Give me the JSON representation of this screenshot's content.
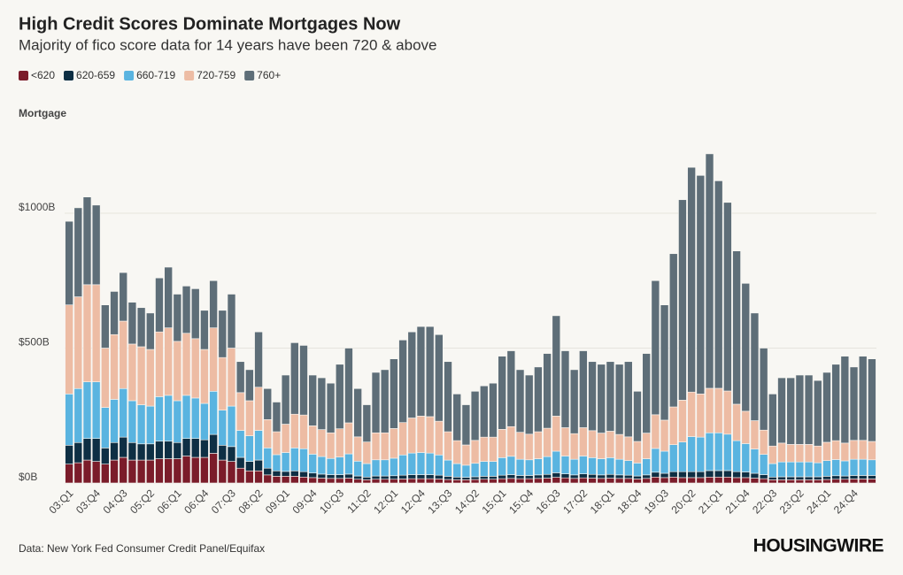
{
  "chart_data": {
    "type": "stacked_bar",
    "title": "High Credit Scores Dominate Mortgages Now",
    "subtitle": "Majority of fico score data for 14 years have been 720 & above",
    "y_label": "Mortgage",
    "source": "Data: New York Fed Consumer Credit Panel/Equifax",
    "logo": "HOUSINGWIRE",
    "ylim": [
      0,
      1300
    ],
    "yticks": [
      {
        "value": 0,
        "label": "$0B"
      },
      {
        "value": 500,
        "label": "$500B"
      },
      {
        "value": 1000,
        "label": "$1000B"
      }
    ],
    "grid": true,
    "legend": "top-left",
    "categories": [
      "03:Q1",
      null,
      null,
      "03:Q4",
      null,
      null,
      "04:Q3",
      null,
      null,
      "05:Q2",
      null,
      null,
      "06:Q1",
      null,
      null,
      "06:Q4",
      null,
      null,
      "07:Q3",
      null,
      null,
      "08:Q2",
      null,
      null,
      "09:Q1",
      null,
      null,
      "09:Q4",
      null,
      null,
      "10:Q3",
      null,
      null,
      "11:Q2",
      null,
      null,
      "12:Q1",
      null,
      null,
      "12:Q4",
      null,
      null,
      "13:Q3",
      null,
      null,
      "14:Q2",
      null,
      null,
      "15:Q1",
      null,
      null,
      "15:Q4",
      null,
      null,
      "16:Q3",
      null,
      null,
      "17:Q2",
      null,
      null,
      "18:Q1",
      null,
      null,
      "18:Q4",
      null,
      null,
      "19:Q3",
      null,
      null,
      "20:Q2",
      null,
      null,
      "21:Q1",
      null,
      null,
      "21:Q4",
      null,
      null,
      "22:Q3",
      null,
      null,
      "23:Q2",
      null,
      null,
      "24:Q1",
      null,
      null,
      "24:Q4",
      null,
      null
    ],
    "series": [
      {
        "name": "<620",
        "color": "#7b1c2a",
        "values": [
          70,
          75,
          85,
          80,
          70,
          85,
          95,
          85,
          85,
          85,
          90,
          90,
          90,
          100,
          95,
          95,
          110,
          85,
          80,
          55,
          45,
          45,
          30,
          25,
          25,
          25,
          22,
          20,
          18,
          17,
          17,
          18,
          14,
          12,
          14,
          14,
          14,
          15,
          16,
          16,
          16,
          15,
          13,
          12,
          12,
          13,
          14,
          14,
          16,
          17,
          16,
          16,
          17,
          18,
          21,
          19,
          17,
          19,
          18,
          17,
          18,
          17,
          17,
          15,
          17,
          22,
          20,
          22,
          20,
          20,
          20,
          22,
          22,
          22,
          20,
          20,
          18,
          16,
          12,
          12,
          12,
          12,
          12,
          12,
          13,
          14,
          14,
          15,
          15,
          15
        ]
      },
      {
        "name": "620-659",
        "color": "#0e2f44",
        "values": [
          70,
          75,
          80,
          85,
          60,
          65,
          75,
          65,
          60,
          60,
          65,
          65,
          60,
          65,
          70,
          65,
          70,
          55,
          55,
          40,
          35,
          40,
          25,
          20,
          18,
          20,
          20,
          17,
          15,
          14,
          14,
          15,
          12,
          10,
          12,
          12,
          13,
          14,
          15,
          15,
          15,
          14,
          12,
          10,
          9,
          10,
          11,
          11,
          13,
          14,
          12,
          12,
          13,
          14,
          17,
          15,
          13,
          15,
          14,
          13,
          14,
          13,
          12,
          11,
          13,
          18,
          16,
          20,
          22,
          22,
          22,
          24,
          24,
          24,
          22,
          21,
          18,
          15,
          10,
          11,
          11,
          11,
          11,
          11,
          12,
          13,
          12,
          13,
          13,
          13
        ]
      },
      {
        "name": "660-719",
        "color": "#5ab4e0",
        "values": [
          190,
          200,
          210,
          210,
          150,
          160,
          180,
          155,
          145,
          140,
          165,
          170,
          155,
          160,
          150,
          135,
          160,
          130,
          150,
          100,
          95,
          110,
          75,
          60,
          70,
          85,
          85,
          70,
          65,
          60,
          65,
          75,
          55,
          50,
          60,
          60,
          65,
          75,
          80,
          82,
          80,
          75,
          60,
          50,
          45,
          50,
          55,
          55,
          65,
          68,
          60,
          58,
          60,
          66,
          80,
          66,
          58,
          66,
          62,
          60,
          62,
          58,
          54,
          48,
          60,
          88,
          82,
          100,
          110,
          130,
          128,
          140,
          140,
          135,
          115,
          105,
          90,
          75,
          50,
          55,
          55,
          55,
          55,
          52,
          58,
          60,
          56,
          60,
          60,
          58
        ]
      },
      {
        "name": "720-759",
        "color": "#edbca4",
        "values": [
          330,
          340,
          360,
          360,
          220,
          240,
          250,
          210,
          215,
          210,
          240,
          250,
          220,
          230,
          220,
          200,
          235,
          195,
          215,
          140,
          130,
          160,
          105,
          85,
          105,
          125,
          125,
          105,
          100,
          95,
          105,
          115,
          90,
          80,
          100,
          100,
          110,
          120,
          130,
          135,
          135,
          125,
          105,
          85,
          75,
          85,
          90,
          90,
          105,
          110,
          100,
          95,
          100,
          105,
          130,
          105,
          95,
          105,
          100,
          95,
          98,
          92,
          88,
          80,
          95,
          125,
          115,
          140,
          155,
          165,
          160,
          165,
          165,
          160,
          135,
          120,
          105,
          90,
          65,
          70,
          65,
          65,
          65,
          62,
          68,
          70,
          66,
          70,
          70,
          68
        ]
      },
      {
        "name": "760+",
        "color": "#5e6e78",
        "values": [
          310,
          330,
          325,
          295,
          160,
          160,
          180,
          155,
          145,
          135,
          200,
          225,
          175,
          175,
          185,
          145,
          175,
          175,
          200,
          115,
          115,
          205,
          115,
          110,
          182,
          265,
          258,
          188,
          192,
          184,
          239,
          277,
          179,
          138,
          224,
          234,
          258,
          306,
          319,
          332,
          334,
          321,
          260,
          173,
          149,
          182,
          190,
          200,
          271,
          281,
          232,
          219,
          240,
          277,
          372,
          285,
          237,
          285,
          256,
          255,
          258,
          260,
          279,
          186,
          295,
          497,
          427,
          568,
          743,
          833,
          810,
          869,
          769,
          699,
          568,
          474,
          399,
          304,
          193,
          242,
          247,
          257,
          257,
          243,
          259,
          283,
          322,
          272,
          312,
          306
        ]
      }
    ]
  }
}
